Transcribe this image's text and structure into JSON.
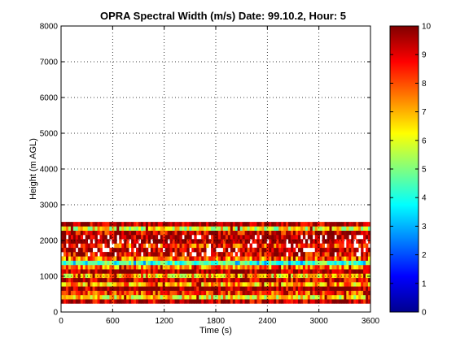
{
  "chart_data": {
    "type": "heatmap",
    "title": "OPRA Spectral Width (m/s)  Date: 99.10.2, Hour: 5",
    "xlabel": "Time (s)",
    "ylabel": "Height (m AGL)",
    "xlim": [
      0,
      3600
    ],
    "ylim": [
      0,
      8000
    ],
    "x_ticks": [
      "0",
      "600",
      "1200",
      "1800",
      "2400",
      "3000",
      "3600"
    ],
    "y_ticks": [
      "0",
      "1000",
      "2000",
      "3000",
      "4000",
      "5000",
      "6000",
      "7000",
      "8000"
    ],
    "grid": true,
    "colorbar": {
      "range": [
        0,
        10
      ],
      "ticks": [
        "0",
        "1",
        "2",
        "3",
        "4",
        "5",
        "6",
        "7",
        "8",
        "9",
        "10"
      ],
      "colormap": "jet"
    },
    "data_extent_height_m": [
      280,
      2520
    ],
    "bands": [
      {
        "height_m": 300,
        "value": 9.6
      },
      {
        "height_m": 420,
        "value": 6.5
      },
      {
        "height_m": 540,
        "value": 8.3
      },
      {
        "height_m": 660,
        "value": 9.8
      },
      {
        "height_m": 780,
        "value": 7.0
      },
      {
        "height_m": 900,
        "value": 9.3
      },
      {
        "height_m": 1020,
        "value": 6.8
      },
      {
        "height_m": 1140,
        "value": 9.8
      },
      {
        "height_m": 1260,
        "value": 7.5
      },
      {
        "height_m": 1380,
        "value": 4.2
      },
      {
        "height_m": 1500,
        "value": 7.8
      },
      {
        "height_m": 1620,
        "value": 9.0
      },
      {
        "height_m": 1740,
        "value": 9.5
      },
      {
        "height_m": 1860,
        "value": 8.2
      },
      {
        "height_m": 1980,
        "value": 9.6
      },
      {
        "height_m": 2100,
        "value": 9.9
      },
      {
        "height_m": 2220,
        "value": 9.2
      },
      {
        "height_m": 2340,
        "value": 6.0
      },
      {
        "height_m": 2460,
        "value": 9.7
      }
    ]
  }
}
